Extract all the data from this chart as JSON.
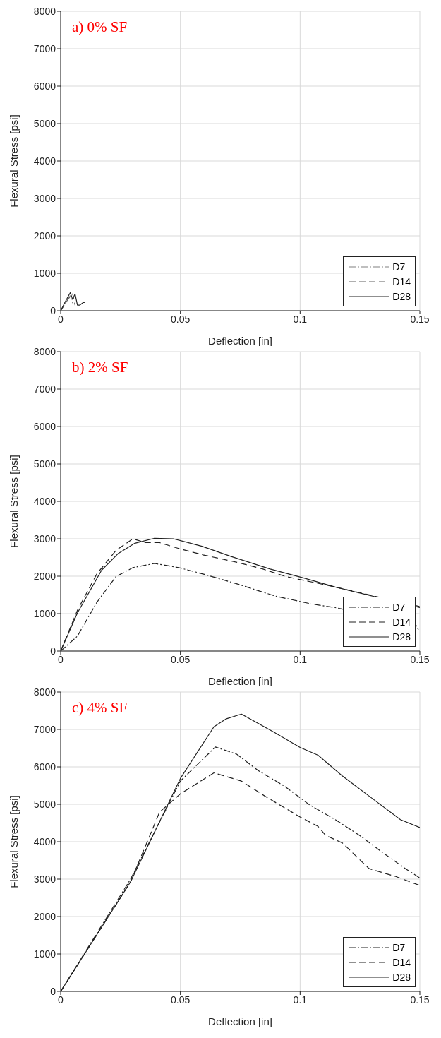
{
  "chart_data": [
    {
      "type": "line",
      "title": "a) 0% SF",
      "xlabel": "Deflection [in]",
      "ylabel": "Flexural Stress [psi]",
      "xlim": [
        0,
        0.15
      ],
      "ylim": [
        0,
        8000
      ],
      "xticks": [
        0,
        0.05,
        0.1,
        0.15
      ],
      "yticks": [
        0,
        1000,
        2000,
        3000,
        4000,
        5000,
        6000,
        7000,
        8000
      ],
      "grid": true,
      "legend": "bottom right",
      "series": [
        {
          "name": "D7",
          "color": "#808080",
          "line_style": "dashdot",
          "x": [
            0,
            0.002,
            0.004,
            0.005
          ],
          "values": [
            0,
            200,
            400,
            200
          ]
        },
        {
          "name": "D14",
          "color": "#606060",
          "line_style": "dashed",
          "x": [
            0,
            0.003,
            0.005,
            0.006
          ],
          "values": [
            0,
            300,
            450,
            150
          ]
        },
        {
          "name": "D28",
          "color": "#202020",
          "line_style": "solid",
          "x": [
            0,
            0.002,
            0.004,
            0.005,
            0.006,
            0.007,
            0.008,
            0.0095,
            0.01
          ],
          "values": [
            0,
            250,
            480,
            300,
            450,
            150,
            150,
            220,
            220
          ]
        }
      ]
    },
    {
      "type": "line",
      "title": "b) 2% SF",
      "xlabel": "Deflection [in]",
      "ylabel": "Flexural Stress [psi]",
      "xlim": [
        0,
        0.15
      ],
      "ylim": [
        0,
        8000
      ],
      "xticks": [
        0,
        0.05,
        0.1,
        0.15
      ],
      "yticks": [
        0,
        1000,
        2000,
        3000,
        4000,
        5000,
        6000,
        7000,
        8000
      ],
      "grid": true,
      "legend": "bottom right",
      "series": [
        {
          "name": "D7",
          "color": "#202020",
          "line_style": "dashdot",
          "x": [
            0,
            0.007,
            0.0151,
            0.0231,
            0.0302,
            0.0392,
            0.0493,
            0.0594,
            0.0744,
            0.0895,
            0.1046,
            0.1147,
            0.148,
            0.1494
          ],
          "values": [
            0,
            400,
            1300,
            1990,
            2230,
            2340,
            2230,
            2060,
            1780,
            1470,
            1260,
            1160,
            740,
            570
          ]
        },
        {
          "name": "D14",
          "color": "#202020",
          "line_style": "dashed",
          "x": [
            0,
            0.007,
            0.0151,
            0.0231,
            0.0302,
            0.0352,
            0.0412,
            0.0493,
            0.0594,
            0.0744,
            0.0845,
            0.094,
            0.1097,
            0.1147,
            0.15
          ],
          "values": [
            0,
            1090,
            2060,
            2690,
            3000,
            2900,
            2900,
            2740,
            2570,
            2360,
            2190,
            1990,
            1780,
            1710,
            1190
          ]
        },
        {
          "name": "D28",
          "color": "#202020",
          "line_style": "solid",
          "x": [
            0,
            0.007,
            0.0171,
            0.0241,
            0.031,
            0.039,
            0.047,
            0.059,
            0.071,
            0.0875,
            0.1016,
            0.1147,
            0.15
          ],
          "values": [
            0,
            1020,
            2160,
            2610,
            2880,
            3010,
            3000,
            2800,
            2530,
            2190,
            1950,
            1710,
            1160
          ]
        }
      ]
    },
    {
      "type": "line",
      "title": "c) 4% SF",
      "xlabel": "Deflection [in]",
      "ylabel": "Flexural Stress [psi]",
      "xlim": [
        0,
        0.15
      ],
      "ylim": [
        0,
        8000
      ],
      "xticks": [
        0,
        0.05,
        0.1,
        0.15
      ],
      "yticks": [
        0,
        1000,
        2000,
        3000,
        4000,
        5000,
        6000,
        7000,
        8000
      ],
      "grid": true,
      "legend": "bottom right",
      "series": [
        {
          "name": "D7",
          "color": "#202020",
          "line_style": "dashdot",
          "x": [
            0,
            0.0292,
            0.05,
            0.0646,
            0.0735,
            0.0825,
            0.0936,
            0.1036,
            0.1147,
            0.1248,
            0.1349,
            0.144,
            0.15
          ],
          "values": [
            0,
            3000,
            5620,
            6530,
            6340,
            5900,
            5480,
            5000,
            4590,
            4170,
            3690,
            3280,
            3030
          ]
        },
        {
          "name": "D14",
          "color": "#202020",
          "line_style": "dashed",
          "x": [
            0,
            0.0292,
            0.0413,
            0.05,
            0.064,
            0.0755,
            0.0855,
            0.1,
            0.1075,
            0.1106,
            0.1176,
            0.1288,
            0.1399,
            0.15
          ],
          "values": [
            0,
            2930,
            4790,
            5280,
            5840,
            5620,
            5210,
            4660,
            4410,
            4170,
            3970,
            3280,
            3070,
            2830
          ]
        },
        {
          "name": "D28",
          "color": "#202020",
          "line_style": "solid",
          "x": [
            0,
            0.0292,
            0.05,
            0.064,
            0.069,
            0.0755,
            0.089,
            0.1,
            0.1075,
            0.1176,
            0.129,
            0.1419,
            0.15
          ],
          "values": [
            0,
            2930,
            5690,
            7070,
            7280,
            7410,
            6930,
            6520,
            6310,
            5760,
            5210,
            4590,
            4380
          ]
        }
      ]
    }
  ]
}
